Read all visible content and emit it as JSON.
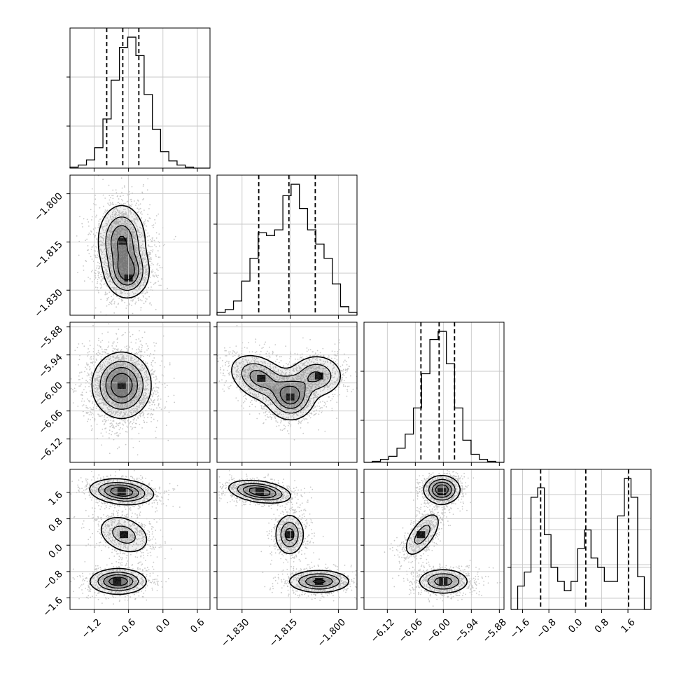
{
  "chart_data": {
    "type": "corner",
    "description_free": true,
    "grid": true,
    "params": [
      {
        "range": [
          -1.62,
          0.82
        ],
        "ticks": [
          -1.2,
          -0.6,
          0.0,
          0.6
        ],
        "tick_labels": [
          "−1.2",
          "−0.6",
          "0.0",
          "0.6"
        ],
        "quantiles": [
          -0.98,
          -0.7,
          -0.42
        ]
      },
      {
        "range": [
          -1.8378,
          -1.7942
        ],
        "ticks": [
          -1.83,
          -1.815,
          -1.8
        ],
        "tick_labels": [
          "−1.830",
          "−1.815",
          "−1.800"
        ],
        "quantiles": [
          -1.8248,
          -1.8154,
          -1.8072
        ]
      },
      {
        "range": [
          -6.17,
          -5.87
        ],
        "ticks": [
          -6.12,
          -6.06,
          -6.0,
          -5.94,
          -5.88
        ],
        "tick_labels": [
          "−6.12",
          "−6.06",
          "−6.00",
          "−5.94",
          "−5.88"
        ],
        "quantiles": [
          -6.048,
          -6.009,
          -5.976
        ]
      },
      {
        "range": [
          -1.95,
          2.3
        ],
        "ticks": [
          -1.6,
          -0.8,
          0.0,
          0.8,
          1.6
        ],
        "tick_labels": [
          "−1.6",
          "−0.8",
          "0.0",
          "0.8",
          "1.6"
        ],
        "quantiles": [
          -1.05,
          0.32,
          1.62
        ]
      }
    ],
    "histograms": [
      [
        1,
        3,
        8,
        20,
        48,
        86,
        118,
        128,
        110,
        72,
        38,
        16,
        7,
        3,
        1,
        0,
        0
      ],
      [
        2,
        4,
        10,
        24,
        40,
        58,
        56,
        60,
        84,
        92,
        75,
        60,
        50,
        40,
        22,
        6,
        2
      ],
      [
        0,
        1,
        3,
        6,
        14,
        28,
        54,
        88,
        122,
        130,
        98,
        54,
        22,
        8,
        3,
        1,
        0
      ],
      [
        0,
        10,
        16,
        48,
        52,
        32,
        18,
        12,
        8,
        12,
        26,
        34,
        22,
        18,
        12,
        12,
        40,
        56,
        48,
        14,
        0
      ]
    ],
    "pairs": [
      {
        "row": 1,
        "col": 0,
        "blobs": [
          {
            "mx": -0.72,
            "my": -1.8148,
            "sx": 0.2,
            "sy": 0.0055,
            "rho": 0,
            "w": 0.6
          },
          {
            "mx": -0.62,
            "my": -1.8245,
            "sx": 0.18,
            "sy": 0.0038,
            "rho": 0,
            "w": 0.4
          }
        ],
        "peaks": [
          {
            "x": -0.7,
            "y": -1.8148
          },
          {
            "x": -0.6,
            "y": -1.8262
          }
        ]
      },
      {
        "row": 2,
        "col": 0,
        "blobs": [
          {
            "mx": -0.72,
            "my": -6.005,
            "sx": 0.24,
            "sy": 0.033,
            "rho": 0,
            "w": 1
          }
        ],
        "peaks": [
          {
            "x": -0.72,
            "y": -6.005
          }
        ]
      },
      {
        "row": 2,
        "col": 1,
        "blobs": [
          {
            "mx": -1.8245,
            "my": -5.99,
            "sx": 0.0045,
            "sy": 0.025,
            "rho": -0.35,
            "w": 0.35
          },
          {
            "mx": -1.8148,
            "my": -6.028,
            "sx": 0.0035,
            "sy": 0.024,
            "rho": 0,
            "w": 0.4
          },
          {
            "mx": -1.8068,
            "my": -5.985,
            "sx": 0.004,
            "sy": 0.022,
            "rho": 0,
            "w": 0.25
          }
        ],
        "peaks": [
          {
            "x": -1.824,
            "y": -5.99
          },
          {
            "x": -1.815,
            "y": -6.03
          },
          {
            "x": -1.806,
            "y": -5.985
          }
        ]
      },
      {
        "row": 3,
        "col": 0,
        "blobs": [
          {
            "mx": -0.72,
            "my": 1.62,
            "sx": 0.26,
            "sy": 0.18,
            "rho": -0.2,
            "w": 0.4
          },
          {
            "mx": -0.68,
            "my": 0.32,
            "sx": 0.23,
            "sy": 0.3,
            "rho": -0.3,
            "w": 0.25
          },
          {
            "mx": -0.78,
            "my": -1.1,
            "sx": 0.23,
            "sy": 0.18,
            "rho": 0,
            "w": 0.35
          }
        ],
        "peaks": [
          {
            "x": -0.72,
            "y": 1.62
          },
          {
            "x": -0.68,
            "y": 0.32
          },
          {
            "x": -0.8,
            "y": -1.1
          }
        ]
      },
      {
        "row": 3,
        "col": 1,
        "blobs": [
          {
            "mx": -1.8245,
            "my": 1.62,
            "sx": 0.0045,
            "sy": 0.16,
            "rho": -0.35,
            "w": 0.4
          },
          {
            "mx": -1.8152,
            "my": 0.32,
            "sx": 0.0022,
            "sy": 0.3,
            "rho": 0,
            "w": 0.25
          },
          {
            "mx": -1.806,
            "my": -1.1,
            "sx": 0.0045,
            "sy": 0.16,
            "rho": 0,
            "w": 0.35
          }
        ],
        "peaks": [
          {
            "x": -1.8245,
            "y": 1.62
          },
          {
            "x": -1.8152,
            "y": 0.32
          },
          {
            "x": -1.806,
            "y": -1.1
          }
        ]
      },
      {
        "row": 3,
        "col": 2,
        "blobs": [
          {
            "mx": -6.003,
            "my": 1.68,
            "sx": 0.018,
            "sy": 0.2,
            "rho": 0,
            "w": 0.4
          },
          {
            "mx": -6.045,
            "my": 0.32,
            "sx": 0.02,
            "sy": 0.35,
            "rho": 0.65,
            "w": 0.25
          },
          {
            "mx": -6.0,
            "my": -1.1,
            "sx": 0.026,
            "sy": 0.18,
            "rho": 0,
            "w": 0.35
          }
        ],
        "peaks": [
          {
            "x": -6.003,
            "y": 1.62
          },
          {
            "x": -6.048,
            "y": 0.32
          },
          {
            "x": -6.0,
            "y": -1.1
          }
        ]
      }
    ]
  }
}
